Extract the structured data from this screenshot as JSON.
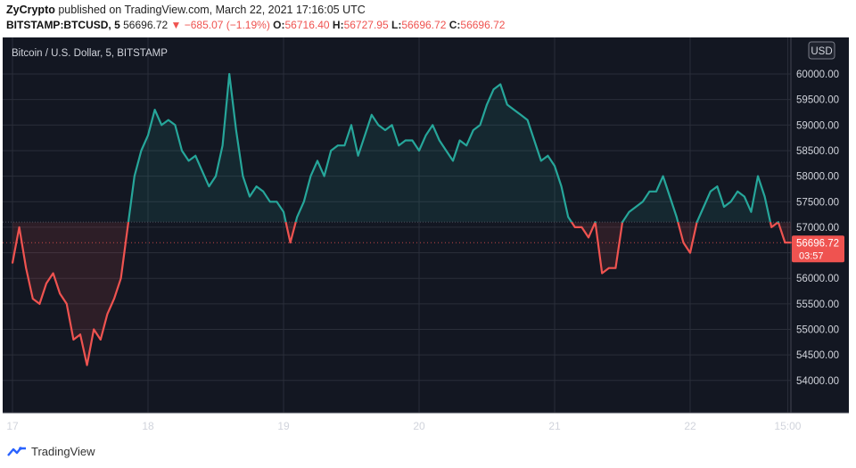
{
  "header": {
    "author": "ZyCrypto",
    "published_text": "published on TradingView.com, March 22, 2021 17:16:05 UTC",
    "symbol": "BITSTAMP:BTCUSD, 5",
    "last": "56696.72",
    "change": "▼ −685.07 (−1.19%)",
    "o_label": "O:",
    "o_value": "56716.40",
    "h_label": "H:",
    "h_value": "56727.95",
    "l_label": "L:",
    "l_value": "56696.72",
    "c_label": "C:",
    "c_value": "56696.72"
  },
  "footer": {
    "brand": "TradingView"
  },
  "colors": {
    "background": "#131722",
    "up": "#26a69a",
    "down": "#ef5350",
    "grid": "#2a2e39",
    "axis_text": "#d1d4dc"
  },
  "chart_data": {
    "type": "area",
    "title": "Bitcoin / U.S. Dollar, 5, BITSTAMP",
    "currency": "USD",
    "baseline": 57100,
    "ylim": [
      53700,
      60000
    ],
    "xlim": [
      0,
      5.8
    ],
    "y_ticks": [
      54000,
      54500,
      55000,
      55500,
      56000,
      56500,
      57000,
      57500,
      58000,
      58500,
      59000,
      59500,
      60000
    ],
    "y_tick_labels": [
      "54000.00",
      "54500.00",
      "55000.00",
      "55500.00",
      "56000.00",
      "56500.00",
      "57000.00",
      "57500.00",
      "58000.00",
      "58500.00",
      "59000.00",
      "59500.00",
      "60000.00"
    ],
    "x_ticks": [
      0,
      1,
      2,
      3,
      4,
      5,
      5.72
    ],
    "x_tick_labels": [
      "17",
      "18",
      "19",
      "20",
      "21",
      "22",
      "15:00"
    ],
    "last_price_label": "56696.72",
    "countdown_label": "03:57",
    "last_price": 56696.72,
    "series": [
      {
        "x": [
          0,
          0.05,
          0.1,
          0.15,
          0.2,
          0.25,
          0.3,
          0.35,
          0.4,
          0.45,
          0.5,
          0.55,
          0.6,
          0.65,
          0.7,
          0.75,
          0.8,
          0.85,
          0.9,
          0.95,
          1.0,
          1.05,
          1.1,
          1.15,
          1.2,
          1.25,
          1.3,
          1.35,
          1.4,
          1.45,
          1.5,
          1.55,
          1.6,
          1.65,
          1.7,
          1.75,
          1.8,
          1.85,
          1.9,
          1.95,
          2.0,
          2.05,
          2.1,
          2.15,
          2.2,
          2.25,
          2.3,
          2.35,
          2.4,
          2.45,
          2.5,
          2.55,
          2.6,
          2.65,
          2.7,
          2.75,
          2.8,
          2.85,
          2.9,
          2.95,
          3.0,
          3.05,
          3.1,
          3.15,
          3.2,
          3.25,
          3.3,
          3.35,
          3.4,
          3.45,
          3.5,
          3.55,
          3.6,
          3.65,
          3.7,
          3.75,
          3.8,
          3.85,
          3.9,
          3.95,
          4.0,
          4.05,
          4.1,
          4.15,
          4.2,
          4.25,
          4.3,
          4.35,
          4.4,
          4.45,
          4.5,
          4.55,
          4.6,
          4.65,
          4.7,
          4.75,
          4.8,
          4.85,
          4.9,
          4.95,
          5.0,
          5.05,
          5.1,
          5.15,
          5.2,
          5.25,
          5.3,
          5.35,
          5.4,
          5.45,
          5.5,
          5.55,
          5.6,
          5.65,
          5.7,
          5.75,
          5.8
        ],
        "y": [
          56300,
          57000,
          56200,
          55600,
          55500,
          55900,
          56100,
          55700,
          55500,
          54800,
          54900,
          54300,
          55000,
          54800,
          55300,
          55600,
          56000,
          57000,
          58000,
          58500,
          58800,
          59300,
          59000,
          59100,
          59000,
          58500,
          58300,
          58400,
          58100,
          57800,
          58000,
          58600,
          60000,
          58900,
          58000,
          57600,
          57800,
          57700,
          57500,
          57500,
          57300,
          56700,
          57200,
          57500,
          58000,
          58300,
          58000,
          58500,
          58600,
          58600,
          59000,
          58400,
          58800,
          59200,
          59000,
          58900,
          59000,
          58600,
          58700,
          58700,
          58500,
          58800,
          59000,
          58700,
          58500,
          58300,
          58700,
          58600,
          58900,
          59000,
          59400,
          59700,
          59800,
          59400,
          59300,
          59200,
          59100,
          58700,
          58300,
          58400,
          58200,
          57800,
          57200,
          57000,
          57000,
          56800,
          57100,
          56100,
          56200,
          56200,
          57100,
          57300,
          57400,
          57500,
          57700,
          57700,
          58000,
          57600,
          57200,
          56700,
          56500,
          57100,
          57400,
          57700,
          57800,
          57400,
          57500,
          57700,
          57600,
          57300,
          58000,
          57600,
          57000,
          57100,
          56700,
          56700,
          56697
        ]
      }
    ]
  }
}
